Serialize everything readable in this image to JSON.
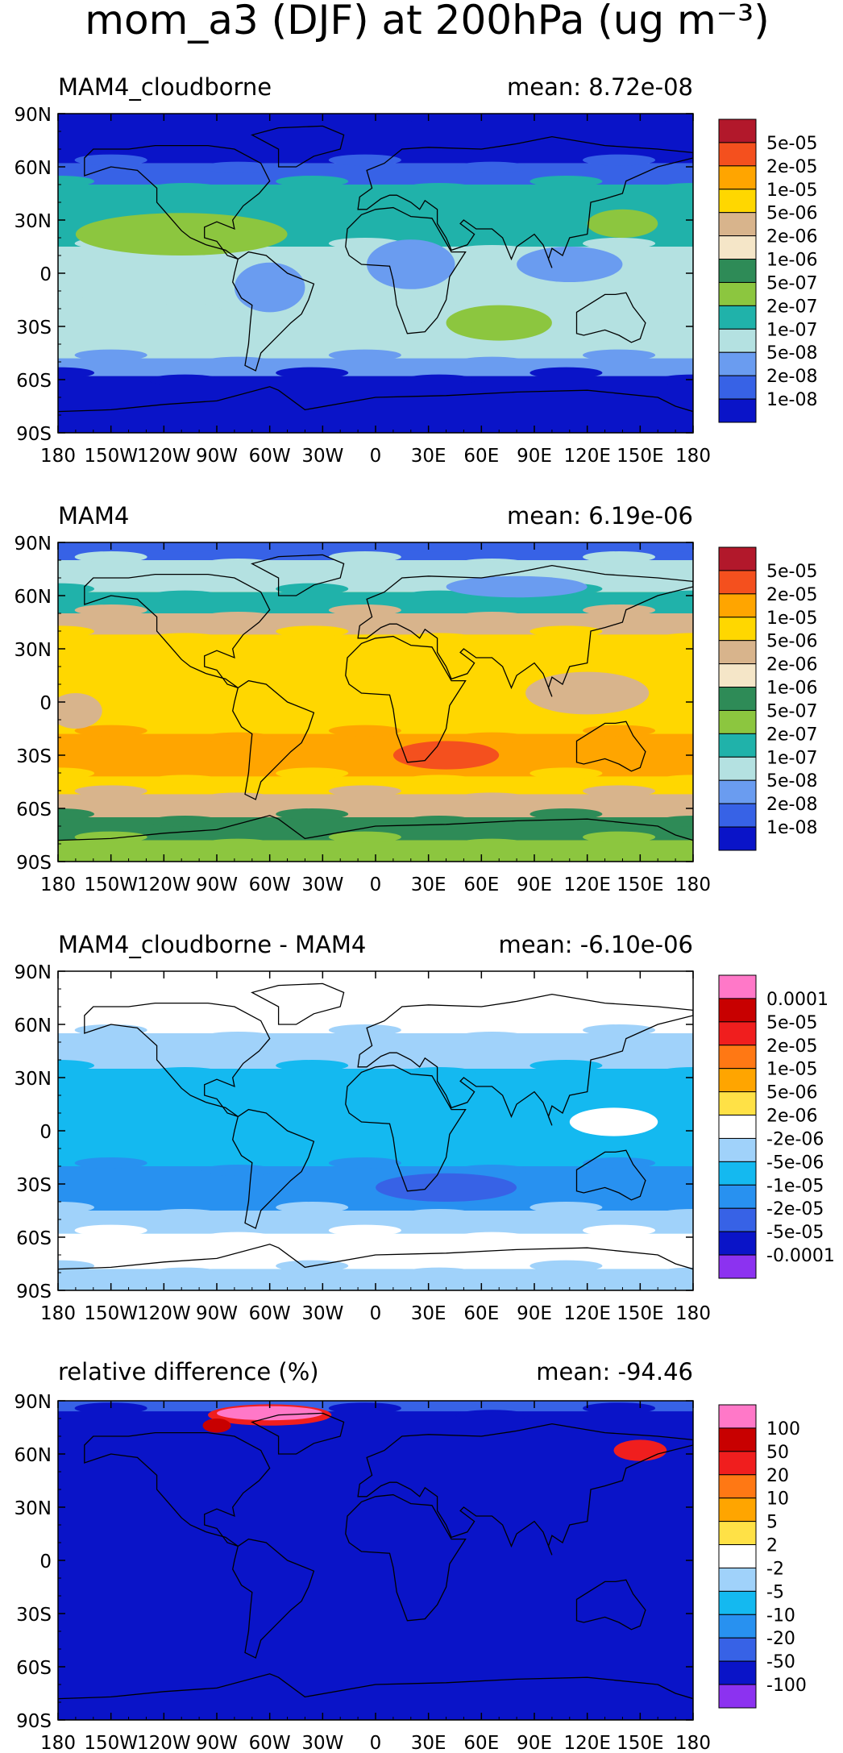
{
  "figure": {
    "title": "mom_a3 (DJF) at 200hPa (ug m⁻³)"
  },
  "axes": {
    "lon_labels": [
      "180",
      "150W",
      "120W",
      "90W",
      "60W",
      "30W",
      "0",
      "30E",
      "60E",
      "90E",
      "120E",
      "150E",
      "180"
    ],
    "lat_labels": [
      "90N",
      "60N",
      "30N",
      "0",
      "30S",
      "60S",
      "90S"
    ]
  },
  "chart_data": [
    {
      "type": "heatmap",
      "title": "MAM4_cloudborne",
      "mean_label": "mean: 8.72e-08",
      "mean_value": 8.72e-08,
      "x_range": [
        -180,
        180
      ],
      "y_range": [
        -90,
        90
      ],
      "colorbar_labels": [
        "5e-05",
        "2e-05",
        "1e-05",
        "5e-06",
        "2e-06",
        "1e-06",
        "5e-07",
        "2e-07",
        "1e-07",
        "5e-08",
        "2e-08",
        "1e-08"
      ],
      "colorbar_colors": [
        "#b2182b",
        "#f4501e",
        "#ffa500",
        "#ffd700",
        "#d8b48c",
        "#f5e6c8",
        "#2e8b57",
        "#8cc63f",
        "#20b2aa",
        "#b4e1e1",
        "#6a9cf0",
        "#3762e6",
        "#0a14c8"
      ],
      "ocean_color": "#b4e1e1",
      "bands": [
        {
          "lat": [
            62,
            90
          ],
          "color": "#0a14c8"
        },
        {
          "lat": [
            50,
            62
          ],
          "color": "#3762e6"
        },
        {
          "lat": [
            15,
            50
          ],
          "color": "#20b2aa"
        },
        {
          "lat": [
            -18,
            15
          ],
          "color": "#b4e1e1"
        },
        {
          "lat": [
            -48,
            -18
          ],
          "color": "#b4e1e1"
        },
        {
          "lat": [
            -58,
            -48
          ],
          "color": "#6a9cf0"
        },
        {
          "lat": [
            -90,
            -58
          ],
          "color": "#0a14c8"
        }
      ],
      "blobs": [
        {
          "lon": -110,
          "lat": 22,
          "rx": 60,
          "ry": 12,
          "color": "#8cc63f"
        },
        {
          "lon": 70,
          "lat": -28,
          "rx": 30,
          "ry": 10,
          "color": "#8cc63f"
        },
        {
          "lon": 140,
          "lat": 28,
          "rx": 20,
          "ry": 8,
          "color": "#8cc63f"
        },
        {
          "lon": -60,
          "lat": -8,
          "rx": 20,
          "ry": 14,
          "color": "#6a9cf0"
        },
        {
          "lon": 20,
          "lat": 5,
          "rx": 25,
          "ry": 14,
          "color": "#6a9cf0"
        },
        {
          "lon": 110,
          "lat": 5,
          "rx": 30,
          "ry": 10,
          "color": "#6a9cf0"
        }
      ]
    },
    {
      "type": "heatmap",
      "title": "MAM4",
      "mean_label": "mean: 6.19e-06",
      "mean_value": 6.19e-06,
      "x_range": [
        -180,
        180
      ],
      "y_range": [
        -90,
        90
      ],
      "colorbar_labels": [
        "5e-05",
        "2e-05",
        "1e-05",
        "5e-06",
        "2e-06",
        "1e-06",
        "5e-07",
        "2e-07",
        "1e-07",
        "5e-08",
        "2e-08",
        "1e-08"
      ],
      "colorbar_colors": [
        "#b2182b",
        "#f4501e",
        "#ffa500",
        "#ffd700",
        "#d8b48c",
        "#f5e6c8",
        "#2e8b57",
        "#8cc63f",
        "#20b2aa",
        "#b4e1e1",
        "#6a9cf0",
        "#3762e6",
        "#0a14c8"
      ],
      "ocean_color": "#ffd700",
      "bands": [
        {
          "lat": [
            80,
            90
          ],
          "color": "#3762e6"
        },
        {
          "lat": [
            62,
            80
          ],
          "color": "#b4e1e1"
        },
        {
          "lat": [
            50,
            62
          ],
          "color": "#20b2aa"
        },
        {
          "lat": [
            38,
            50
          ],
          "color": "#d8b48c"
        },
        {
          "lat": [
            -18,
            38
          ],
          "color": "#ffd700"
        },
        {
          "lat": [
            -42,
            -18
          ],
          "color": "#ffa500"
        },
        {
          "lat": [
            -52,
            -42
          ],
          "color": "#ffd700"
        },
        {
          "lat": [
            -65,
            -52
          ],
          "color": "#d8b48c"
        },
        {
          "lat": [
            -78,
            -65
          ],
          "color": "#2e8b57"
        },
        {
          "lat": [
            -90,
            -78
          ],
          "color": "#8cc63f"
        }
      ],
      "blobs": [
        {
          "lon": 40,
          "lat": -30,
          "rx": 30,
          "ry": 8,
          "color": "#f4501e"
        },
        {
          "lon": 120,
          "lat": 5,
          "rx": 35,
          "ry": 12,
          "color": "#d8b48c"
        },
        {
          "lon": -170,
          "lat": -5,
          "rx": 15,
          "ry": 10,
          "color": "#d8b48c"
        },
        {
          "lon": 80,
          "lat": 65,
          "rx": 40,
          "ry": 6,
          "color": "#6a9cf0"
        }
      ]
    },
    {
      "type": "heatmap",
      "title": "MAM4_cloudborne - MAM4",
      "mean_label": "mean: -6.10e-06",
      "mean_value": -6.1e-06,
      "x_range": [
        -180,
        180
      ],
      "y_range": [
        -90,
        90
      ],
      "colorbar_labels": [
        "0.0001",
        "5e-05",
        "2e-05",
        "1e-05",
        "5e-06",
        "2e-06",
        "-2e-06",
        "-5e-06",
        "-1e-05",
        "-2e-05",
        "-5e-05",
        "-0.0001"
      ],
      "colorbar_colors": [
        "#ff78c8",
        "#c80000",
        "#f01e1e",
        "#ff7814",
        "#ffa500",
        "#ffe146",
        "#ffffff",
        "#a0d2fa",
        "#14b9f0",
        "#2891f0",
        "#3762e6",
        "#0a14c8",
        "#8c32f0"
      ],
      "ocean_color": "#14b9f0",
      "bands": [
        {
          "lat": [
            55,
            90
          ],
          "color": "#ffffff"
        },
        {
          "lat": [
            35,
            55
          ],
          "color": "#a0d2fa"
        },
        {
          "lat": [
            -20,
            35
          ],
          "color": "#14b9f0"
        },
        {
          "lat": [
            -45,
            -20
          ],
          "color": "#2891f0"
        },
        {
          "lat": [
            -58,
            -45
          ],
          "color": "#a0d2fa"
        },
        {
          "lat": [
            -78,
            -58
          ],
          "color": "#ffffff"
        },
        {
          "lat": [
            -90,
            -78
          ],
          "color": "#a0d2fa"
        }
      ],
      "blobs": [
        {
          "lon": 40,
          "lat": -32,
          "rx": 40,
          "ry": 8,
          "color": "#3762e6"
        },
        {
          "lon": 135,
          "lat": 5,
          "rx": 25,
          "ry": 8,
          "color": "#ffffff"
        }
      ]
    },
    {
      "type": "heatmap",
      "title": "relative difference (%)",
      "mean_label": "mean: -94.46",
      "mean_value": -94.46,
      "x_range": [
        -180,
        180
      ],
      "y_range": [
        -90,
        90
      ],
      "colorbar_labels": [
        "100",
        "50",
        "20",
        "10",
        "5",
        "2",
        "-2",
        "-5",
        "-10",
        "-20",
        "-50",
        "-100"
      ],
      "colorbar_colors": [
        "#ff78c8",
        "#c80000",
        "#f01e1e",
        "#ff7814",
        "#ffa500",
        "#ffe146",
        "#ffffff",
        "#a0d2fa",
        "#14b9f0",
        "#2891f0",
        "#3762e6",
        "#0a14c8",
        "#8c32f0"
      ],
      "ocean_color": "#0a14c8",
      "bands": [
        {
          "lat": [
            84,
            90
          ],
          "color": "#3762e6"
        },
        {
          "lat": [
            -90,
            84
          ],
          "color": "#0a14c8"
        }
      ],
      "blobs": [
        {
          "lon": -60,
          "lat": 82,
          "rx": 35,
          "ry": 6,
          "color": "#f01e1e"
        },
        {
          "lon": -60,
          "lat": 83,
          "rx": 30,
          "ry": 4,
          "color": "#ff78c8"
        },
        {
          "lon": 150,
          "lat": 62,
          "rx": 15,
          "ry": 6,
          "color": "#f01e1e"
        },
        {
          "lon": -90,
          "lat": 76,
          "rx": 8,
          "ry": 4,
          "color": "#c80000"
        }
      ]
    }
  ]
}
